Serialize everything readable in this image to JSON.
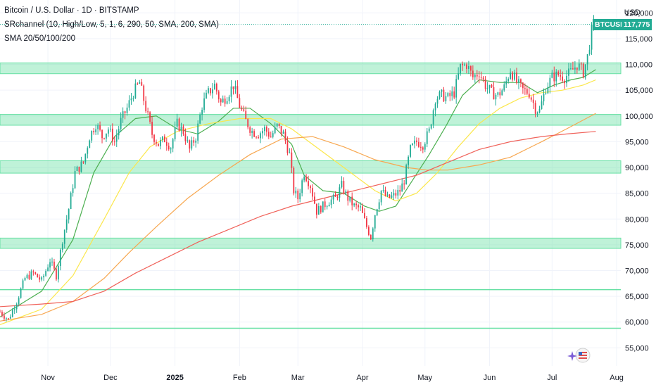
{
  "header": {
    "line1": "Bitcoin / U.S. Dollar · 1D · BITSTAMP",
    "line2": "SRchannel (10, High/Low, 5, 1, 6, 290, 50, SMA, 200, SMA)",
    "line3": "SMA 20/50/100/200"
  },
  "currency": "USD",
  "last_price": {
    "symbol": "BTCUSD",
    "value_label": "117,775",
    "value": 117775,
    "color": "#22ab94"
  },
  "chart_data": {
    "type": "candlestick",
    "y_ticks": [
      {
        "value": 120000,
        "label": "120,000"
      },
      {
        "value": 115000,
        "label": "115,000"
      },
      {
        "value": 110000,
        "label": "110,000"
      },
      {
        "value": 105000,
        "label": "105,000"
      },
      {
        "value": 100000,
        "label": "100,000"
      },
      {
        "value": 95000,
        "label": "95,000"
      },
      {
        "value": 90000,
        "label": "90,000"
      },
      {
        "value": 85000,
        "label": "85,000"
      },
      {
        "value": 80000,
        "label": "80,000"
      },
      {
        "value": 75000,
        "label": "75,000"
      },
      {
        "value": 70000,
        "label": "70,000"
      },
      {
        "value": 65000,
        "label": "65,000"
      },
      {
        "value": 60000,
        "label": "60,000"
      },
      {
        "value": 55000,
        "label": "55,000"
      }
    ],
    "ylim": [
      51500,
      122500
    ],
    "x_ticks": [
      {
        "label": "Nov",
        "day": 23,
        "bold": false
      },
      {
        "label": "Dec",
        "day": 53,
        "bold": false
      },
      {
        "label": "2025",
        "day": 84,
        "bold": true
      },
      {
        "label": "Feb",
        "day": 115,
        "bold": false
      },
      {
        "label": "Mar",
        "day": 143,
        "bold": false
      },
      {
        "label": "Apr",
        "day": 174,
        "bold": false
      },
      {
        "label": "May",
        "day": 204,
        "bold": false
      },
      {
        "label": "Jun",
        "day": 235,
        "bold": false
      },
      {
        "label": "Jul",
        "day": 265,
        "bold": false
      },
      {
        "label": "Aug",
        "day": 296,
        "bold": false
      }
    ],
    "xlim": [
      0,
      298
    ],
    "support_resistance_zones": [
      {
        "low": 108200,
        "high": 110300
      },
      {
        "low": 98200,
        "high": 100300
      },
      {
        "low": 88900,
        "high": 91300
      },
      {
        "low": 74300,
        "high": 76300
      },
      {
        "low": 66300,
        "high": 66300
      },
      {
        "low": 58800,
        "high": 58800
      }
    ],
    "zone_color": "#66e0a3",
    "up_color": "#22ab94",
    "down_color": "#f23645",
    "price_path": [
      [
        0,
        62000
      ],
      [
        4,
        60500
      ],
      [
        8,
        64000
      ],
      [
        12,
        68500
      ],
      [
        16,
        69500
      ],
      [
        20,
        68000
      ],
      [
        24,
        72000
      ],
      [
        27,
        69000
      ],
      [
        30,
        76000
      ],
      [
        33,
        82000
      ],
      [
        36,
        89000
      ],
      [
        40,
        91000
      ],
      [
        43,
        96000
      ],
      [
        46,
        98500
      ],
      [
        49,
        96000
      ],
      [
        52,
        97500
      ],
      [
        55,
        95000
      ],
      [
        58,
        99000
      ],
      [
        61,
        101500
      ],
      [
        64,
        104500
      ],
      [
        67,
        106500
      ],
      [
        70,
        101500
      ],
      [
        73,
        96500
      ],
      [
        76,
        94500
      ],
      [
        79,
        95500
      ],
      [
        82,
        94000
      ],
      [
        85,
        98500
      ],
      [
        88,
        97000
      ],
      [
        91,
        93500
      ],
      [
        94,
        96000
      ],
      [
        97,
        102000
      ],
      [
        100,
        104500
      ],
      [
        103,
        106000
      ],
      [
        106,
        102500
      ],
      [
        109,
        104000
      ],
      [
        112,
        106000
      ],
      [
        115,
        102000
      ],
      [
        118,
        99000
      ],
      [
        121,
        97000
      ],
      [
        124,
        96500
      ],
      [
        127,
        97500
      ],
      [
        130,
        96000
      ],
      [
        133,
        98000
      ],
      [
        136,
        96500
      ],
      [
        139,
        92500
      ],
      [
        141,
        85500
      ],
      [
        143,
        84000
      ],
      [
        146,
        89000
      ],
      [
        149,
        86500
      ],
      [
        152,
        81500
      ],
      [
        155,
        82500
      ],
      [
        158,
        83500
      ],
      [
        161,
        84000
      ],
      [
        164,
        86500
      ],
      [
        167,
        84000
      ],
      [
        170,
        82500
      ],
      [
        173,
        82000
      ],
      [
        176,
        78500
      ],
      [
        178,
        76500
      ],
      [
        180,
        81000
      ],
      [
        183,
        85500
      ],
      [
        186,
        84000
      ],
      [
        189,
        84500
      ],
      [
        192,
        85500
      ],
      [
        194,
        87500
      ],
      [
        197,
        93500
      ],
      [
        200,
        95000
      ],
      [
        203,
        94500
      ],
      [
        206,
        97000
      ],
      [
        209,
        103500
      ],
      [
        212,
        104000
      ],
      [
        215,
        103500
      ],
      [
        218,
        104500
      ],
      [
        221,
        109500
      ],
      [
        224,
        110000
      ],
      [
        227,
        107500
      ],
      [
        230,
        108500
      ],
      [
        233,
        106000
      ],
      [
        236,
        104500
      ],
      [
        239,
        104000
      ],
      [
        242,
        105500
      ],
      [
        245,
        109000
      ],
      [
        248,
        106500
      ],
      [
        251,
        105000
      ],
      [
        254,
        104500
      ],
      [
        257,
        101500
      ],
      [
        259,
        101000
      ],
      [
        262,
        105500
      ],
      [
        265,
        107500
      ],
      [
        268,
        108000
      ],
      [
        271,
        107500
      ],
      [
        274,
        108500
      ],
      [
        277,
        110000
      ],
      [
        280,
        108500
      ],
      [
        282,
        111500
      ],
      [
        284,
        116500
      ],
      [
        285,
        117775
      ]
    ],
    "sma_series": [
      {
        "period": 20,
        "color": "#4caf50",
        "points": [
          [
            0,
            61000
          ],
          [
            20,
            66000
          ],
          [
            35,
            76000
          ],
          [
            45,
            89000
          ],
          [
            55,
            96000
          ],
          [
            65,
            99500
          ],
          [
            75,
            100000
          ],
          [
            85,
            97500
          ],
          [
            95,
            96500
          ],
          [
            105,
            99000
          ],
          [
            112,
            101500
          ],
          [
            120,
            101500
          ],
          [
            130,
            98500
          ],
          [
            140,
            94500
          ],
          [
            146,
            88500
          ],
          [
            155,
            85500
          ],
          [
            165,
            85000
          ],
          [
            175,
            82500
          ],
          [
            182,
            81500
          ],
          [
            190,
            82500
          ],
          [
            198,
            87500
          ],
          [
            206,
            92500
          ],
          [
            214,
            98000
          ],
          [
            222,
            104000
          ],
          [
            230,
            107000
          ],
          [
            240,
            106500
          ],
          [
            250,
            106500
          ],
          [
            258,
            104500
          ],
          [
            266,
            106000
          ],
          [
            274,
            107000
          ],
          [
            280,
            107500
          ],
          [
            286,
            109000
          ]
        ]
      },
      {
        "period": 50,
        "color": "#fbe74c",
        "points": [
          [
            0,
            59500
          ],
          [
            20,
            62500
          ],
          [
            35,
            69000
          ],
          [
            50,
            80000
          ],
          [
            62,
            89000
          ],
          [
            72,
            94000
          ],
          [
            85,
            97000
          ],
          [
            100,
            98500
          ],
          [
            115,
            99500
          ],
          [
            130,
            99500
          ],
          [
            140,
            97500
          ],
          [
            150,
            94500
          ],
          [
            160,
            91500
          ],
          [
            170,
            88500
          ],
          [
            180,
            85500
          ],
          [
            190,
            83500
          ],
          [
            200,
            85000
          ],
          [
            210,
            89000
          ],
          [
            220,
            94000
          ],
          [
            230,
            98500
          ],
          [
            240,
            101500
          ],
          [
            250,
            103500
          ],
          [
            260,
            104500
          ],
          [
            270,
            105000
          ],
          [
            280,
            106000
          ],
          [
            286,
            107000
          ]
        ]
      },
      {
        "period": 100,
        "color": "#f7a750",
        "points": [
          [
            0,
            60200
          ],
          [
            20,
            61500
          ],
          [
            35,
            64000
          ],
          [
            50,
            68500
          ],
          [
            62,
            73500
          ],
          [
            75,
            78500
          ],
          [
            90,
            84000
          ],
          [
            105,
            88500
          ],
          [
            120,
            92500
          ],
          [
            135,
            95500
          ],
          [
            150,
            96000
          ],
          [
            165,
            94000
          ],
          [
            180,
            91500
          ],
          [
            195,
            90000
          ],
          [
            205,
            89500
          ],
          [
            215,
            89500
          ],
          [
            230,
            90500
          ],
          [
            245,
            92000
          ],
          [
            260,
            95000
          ],
          [
            272,
            97500
          ],
          [
            286,
            100500
          ]
        ]
      },
      {
        "period": 200,
        "color": "#f0625a",
        "points": [
          [
            0,
            63000
          ],
          [
            20,
            63500
          ],
          [
            35,
            64000
          ],
          [
            50,
            66000
          ],
          [
            65,
            69500
          ],
          [
            80,
            72500
          ],
          [
            95,
            75500
          ],
          [
            110,
            78000
          ],
          [
            125,
            80500
          ],
          [
            140,
            82500
          ],
          [
            155,
            84000
          ],
          [
            170,
            85500
          ],
          [
            185,
            87000
          ],
          [
            200,
            88500
          ],
          [
            215,
            91000
          ],
          [
            230,
            93500
          ],
          [
            245,
            95000
          ],
          [
            260,
            96000
          ],
          [
            272,
            96500
          ],
          [
            286,
            97000
          ]
        ]
      }
    ]
  }
}
